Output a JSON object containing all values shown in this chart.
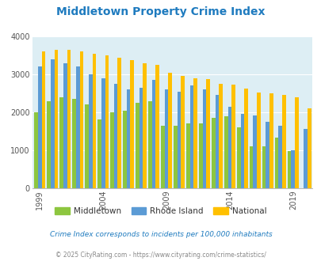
{
  "title": "Middletown Property Crime Index",
  "years": [
    1999,
    2000,
    2001,
    2002,
    2003,
    2004,
    2005,
    2006,
    2007,
    2008,
    2009,
    2010,
    2011,
    2012,
    2013,
    2014,
    2015,
    2016,
    2017,
    2018,
    2019,
    2020
  ],
  "middletown": [
    2000,
    2300,
    2400,
    2350,
    2200,
    1800,
    2000,
    2050,
    2250,
    2300,
    1650,
    1650,
    1700,
    1700,
    1850,
    1900,
    1600,
    1100,
    1100,
    1330,
    980,
    0
  ],
  "rhode_island": [
    3200,
    3400,
    3300,
    3200,
    3000,
    2900,
    2750,
    2600,
    2650,
    2850,
    2600,
    2550,
    2700,
    2600,
    2450,
    2150,
    1950,
    1920,
    1750,
    1650,
    1000,
    1550
  ],
  "national": [
    3600,
    3650,
    3650,
    3600,
    3550,
    3500,
    3450,
    3380,
    3300,
    3250,
    3050,
    2950,
    2900,
    2880,
    2750,
    2720,
    2620,
    2510,
    2490,
    2450,
    2400,
    2100
  ],
  "middletown_color": "#8dc63f",
  "rhode_island_color": "#5b9bd5",
  "national_color": "#ffc000",
  "bg_color": "#ddeef4",
  "ylabel_ticks": [
    0,
    1000,
    2000,
    3000,
    4000
  ],
  "x_tick_years": [
    1999,
    2004,
    2009,
    2014,
    2019
  ],
  "ylim": [
    0,
    4000
  ],
  "subtitle": "Crime Index corresponds to incidents per 100,000 inhabitants",
  "footer": "© 2025 CityRating.com - https://www.cityrating.com/crime-statistics/",
  "title_color": "#1f7bbf",
  "subtitle_color": "#1f7bbf",
  "footer_color": "#888888"
}
